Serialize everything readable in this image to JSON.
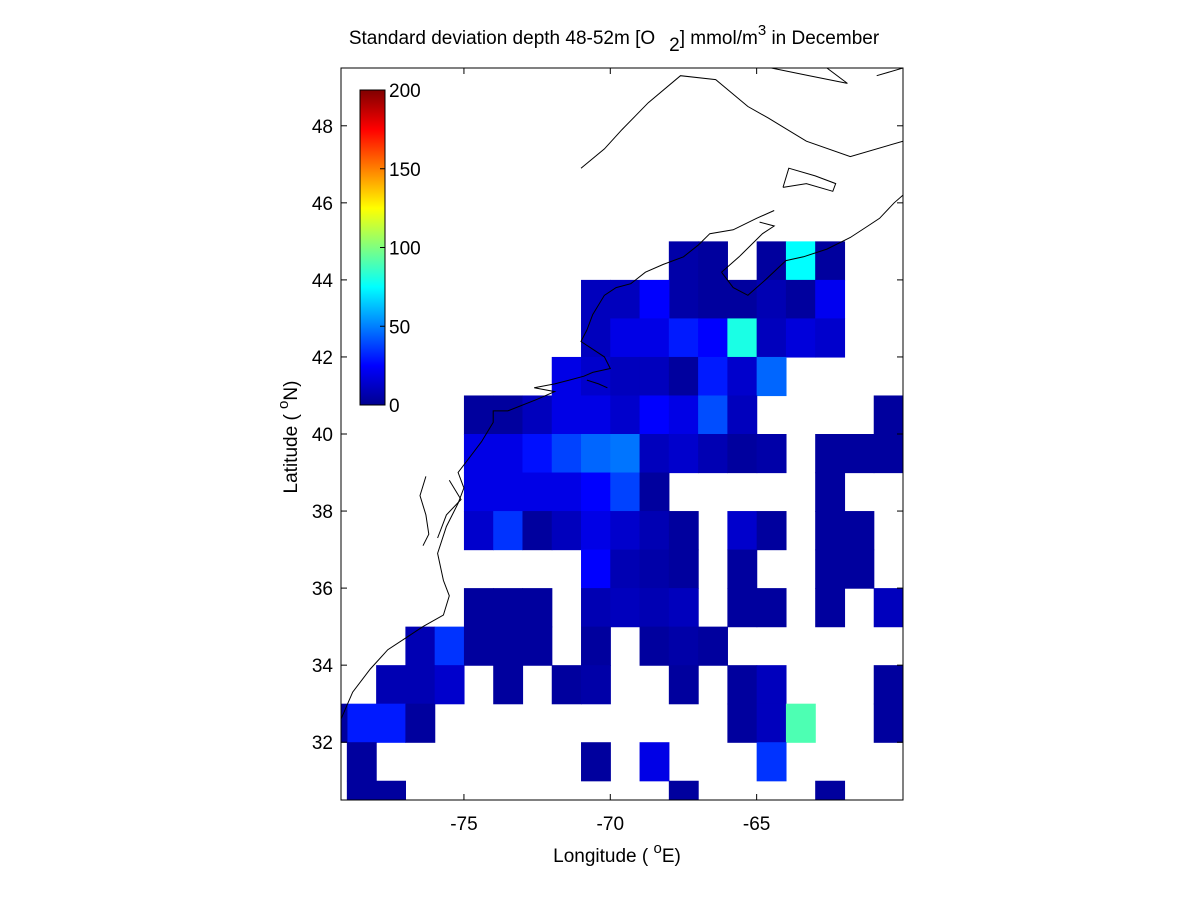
{
  "chart_data": {
    "type": "heatmap",
    "title": {
      "prefix": "Standard deviation depth 48-52m [O",
      "sub": "2",
      "mid": "] mmol/m",
      "sup": "3",
      "suffix": " in December"
    },
    "xlabel": {
      "prefix": "Longitude ( ",
      "sup": "o",
      "suffix": "E)"
    },
    "ylabel": {
      "prefix": "Latitude ( ",
      "sup": "o",
      "suffix": "N)"
    },
    "xlim": [
      -79.2,
      -60.0
    ],
    "ylim": [
      30.5,
      49.5
    ],
    "xticks": [
      -75,
      -70,
      -65
    ],
    "yticks": [
      32,
      34,
      36,
      38,
      40,
      42,
      44,
      46,
      48
    ],
    "grid": false,
    "colormap": "jet",
    "colorbar": {
      "range": [
        0,
        200
      ],
      "ticks": [
        0,
        50,
        100,
        150,
        200
      ],
      "placement": "top-left"
    },
    "cell_size_deg": 1,
    "cells": [
      {
        "lon": -67.5,
        "lat": 44.5,
        "v": 8
      },
      {
        "lon": -66.5,
        "lat": 44.5,
        "v": 6
      },
      {
        "lon": -64.5,
        "lat": 44.5,
        "v": 6
      },
      {
        "lon": -63.5,
        "lat": 44.5,
        "v": 75
      },
      {
        "lon": -62.5,
        "lat": 44.5,
        "v": 6
      },
      {
        "lon": -67.5,
        "lat": 43.5,
        "v": 8
      },
      {
        "lon": -66.5,
        "lat": 43.5,
        "v": 6
      },
      {
        "lon": -65.5,
        "lat": 43.5,
        "v": 6
      },
      {
        "lon": -64.5,
        "lat": 43.5,
        "v": 10
      },
      {
        "lon": -63.5,
        "lat": 43.5,
        "v": 6
      },
      {
        "lon": -70.5,
        "lat": 43.5,
        "v": 12
      },
      {
        "lon": -69.5,
        "lat": 43.5,
        "v": 12
      },
      {
        "lon": -68.5,
        "lat": 43.5,
        "v": 25
      },
      {
        "lon": -62.5,
        "lat": 43.5,
        "v": 22
      },
      {
        "lon": -70.5,
        "lat": 42.5,
        "v": 12
      },
      {
        "lon": -69.5,
        "lat": 42.5,
        "v": 20
      },
      {
        "lon": -68.5,
        "lat": 42.5,
        "v": 20
      },
      {
        "lon": -67.5,
        "lat": 42.5,
        "v": 30
      },
      {
        "lon": -66.5,
        "lat": 42.5,
        "v": 25
      },
      {
        "lon": -65.5,
        "lat": 42.5,
        "v": 80
      },
      {
        "lon": -64.5,
        "lat": 42.5,
        "v": 12
      },
      {
        "lon": -63.5,
        "lat": 42.5,
        "v": 18
      },
      {
        "lon": -62.5,
        "lat": 42.5,
        "v": 15
      },
      {
        "lon": -71.5,
        "lat": 41.5,
        "v": 20
      },
      {
        "lon": -70.5,
        "lat": 41.5,
        "v": 15
      },
      {
        "lon": -69.5,
        "lat": 41.5,
        "v": 12
      },
      {
        "lon": -68.5,
        "lat": 41.5,
        "v": 12
      },
      {
        "lon": -67.5,
        "lat": 41.5,
        "v": 6
      },
      {
        "lon": -66.5,
        "lat": 41.5,
        "v": 30
      },
      {
        "lon": -65.5,
        "lat": 41.5,
        "v": 15
      },
      {
        "lon": -64.5,
        "lat": 41.5,
        "v": 45
      },
      {
        "lon": -74.5,
        "lat": 40.5,
        "v": 6
      },
      {
        "lon": -73.5,
        "lat": 40.5,
        "v": 6
      },
      {
        "lon": -72.5,
        "lat": 40.5,
        "v": 12
      },
      {
        "lon": -71.5,
        "lat": 40.5,
        "v": 20
      },
      {
        "lon": -70.5,
        "lat": 40.5,
        "v": 20
      },
      {
        "lon": -69.5,
        "lat": 40.5,
        "v": 15
      },
      {
        "lon": -68.5,
        "lat": 40.5,
        "v": 25
      },
      {
        "lon": -67.5,
        "lat": 40.5,
        "v": 20
      },
      {
        "lon": -66.5,
        "lat": 40.5,
        "v": 40
      },
      {
        "lon": -65.5,
        "lat": 40.5,
        "v": 12
      },
      {
        "lon": -60.5,
        "lat": 40.5,
        "v": 6
      },
      {
        "lon": -74.5,
        "lat": 39.5,
        "v": 20
      },
      {
        "lon": -73.5,
        "lat": 39.5,
        "v": 20
      },
      {
        "lon": -72.5,
        "lat": 39.5,
        "v": 28
      },
      {
        "lon": -71.5,
        "lat": 39.5,
        "v": 38
      },
      {
        "lon": -70.5,
        "lat": 39.5,
        "v": 45
      },
      {
        "lon": -69.5,
        "lat": 39.5,
        "v": 48
      },
      {
        "lon": -68.5,
        "lat": 39.5,
        "v": 12
      },
      {
        "lon": -67.5,
        "lat": 39.5,
        "v": 15
      },
      {
        "lon": -66.5,
        "lat": 39.5,
        "v": 10
      },
      {
        "lon": -65.5,
        "lat": 39.5,
        "v": 6
      },
      {
        "lon": -64.5,
        "lat": 39.5,
        "v": 8
      },
      {
        "lon": -62.5,
        "lat": 39.5,
        "v": 6
      },
      {
        "lon": -61.5,
        "lat": 39.5,
        "v": 6
      },
      {
        "lon": -60.5,
        "lat": 39.5,
        "v": 6
      },
      {
        "lon": -74.5,
        "lat": 38.5,
        "v": 20
      },
      {
        "lon": -73.5,
        "lat": 38.5,
        "v": 20
      },
      {
        "lon": -72.5,
        "lat": 38.5,
        "v": 20
      },
      {
        "lon": -71.5,
        "lat": 38.5,
        "v": 20
      },
      {
        "lon": -70.5,
        "lat": 38.5,
        "v": 25
      },
      {
        "lon": -69.5,
        "lat": 38.5,
        "v": 38
      },
      {
        "lon": -68.5,
        "lat": 38.5,
        "v": 6
      },
      {
        "lon": -62.5,
        "lat": 38.5,
        "v": 6
      },
      {
        "lon": -74.5,
        "lat": 37.5,
        "v": 15
      },
      {
        "lon": -73.5,
        "lat": 37.5,
        "v": 35
      },
      {
        "lon": -72.5,
        "lat": 37.5,
        "v": 6
      },
      {
        "lon": -71.5,
        "lat": 37.5,
        "v": 12
      },
      {
        "lon": -70.5,
        "lat": 37.5,
        "v": 20
      },
      {
        "lon": -69.5,
        "lat": 37.5,
        "v": 15
      },
      {
        "lon": -68.5,
        "lat": 37.5,
        "v": 10
      },
      {
        "lon": -67.5,
        "lat": 37.5,
        "v": 6
      },
      {
        "lon": -65.5,
        "lat": 37.5,
        "v": 15
      },
      {
        "lon": -64.5,
        "lat": 37.5,
        "v": 6
      },
      {
        "lon": -62.5,
        "lat": 37.5,
        "v": 6
      },
      {
        "lon": -61.5,
        "lat": 37.5,
        "v": 6
      },
      {
        "lon": -70.5,
        "lat": 36.5,
        "v": 25
      },
      {
        "lon": -69.5,
        "lat": 36.5,
        "v": 10
      },
      {
        "lon": -68.5,
        "lat": 36.5,
        "v": 8
      },
      {
        "lon": -67.5,
        "lat": 36.5,
        "v": 6
      },
      {
        "lon": -65.5,
        "lat": 36.5,
        "v": 6
      },
      {
        "lon": -62.5,
        "lat": 36.5,
        "v": 6
      },
      {
        "lon": -61.5,
        "lat": 36.5,
        "v": 6
      },
      {
        "lon": -74.5,
        "lat": 35.5,
        "v": 6
      },
      {
        "lon": -73.5,
        "lat": 35.5,
        "v": 6
      },
      {
        "lon": -72.5,
        "lat": 35.5,
        "v": 6
      },
      {
        "lon": -70.5,
        "lat": 35.5,
        "v": 10
      },
      {
        "lon": -69.5,
        "lat": 35.5,
        "v": 12
      },
      {
        "lon": -68.5,
        "lat": 35.5,
        "v": 10
      },
      {
        "lon": -67.5,
        "lat": 35.5,
        "v": 12
      },
      {
        "lon": -65.5,
        "lat": 35.5,
        "v": 6
      },
      {
        "lon": -64.5,
        "lat": 35.5,
        "v": 6
      },
      {
        "lon": -62.5,
        "lat": 35.5,
        "v": 6
      },
      {
        "lon": -60.5,
        "lat": 35.5,
        "v": 12
      },
      {
        "lon": -76.5,
        "lat": 34.5,
        "v": 10
      },
      {
        "lon": -75.5,
        "lat": 34.5,
        "v": 35
      },
      {
        "lon": -74.5,
        "lat": 34.5,
        "v": 6
      },
      {
        "lon": -73.5,
        "lat": 34.5,
        "v": 6
      },
      {
        "lon": -72.5,
        "lat": 34.5,
        "v": 6
      },
      {
        "lon": -70.5,
        "lat": 34.5,
        "v": 6
      },
      {
        "lon": -68.5,
        "lat": 34.5,
        "v": 6
      },
      {
        "lon": -67.5,
        "lat": 34.5,
        "v": 8
      },
      {
        "lon": -66.5,
        "lat": 34.5,
        "v": 6
      },
      {
        "lon": -77.5,
        "lat": 33.5,
        "v": 10
      },
      {
        "lon": -76.5,
        "lat": 33.5,
        "v": 10
      },
      {
        "lon": -75.5,
        "lat": 33.5,
        "v": 15
      },
      {
        "lon": -73.5,
        "lat": 33.5,
        "v": 6
      },
      {
        "lon": -71.5,
        "lat": 33.5,
        "v": 6
      },
      {
        "lon": -70.5,
        "lat": 33.5,
        "v": 8
      },
      {
        "lon": -67.5,
        "lat": 33.5,
        "v": 6
      },
      {
        "lon": -65.5,
        "lat": 33.5,
        "v": 6
      },
      {
        "lon": -64.5,
        "lat": 33.5,
        "v": 12
      },
      {
        "lon": -60.5,
        "lat": 33.5,
        "v": 6
      },
      {
        "lon": -78.5,
        "lat": 32.5,
        "v": 30
      },
      {
        "lon": -77.5,
        "lat": 32.5,
        "v": 30
      },
      {
        "lon": -76.5,
        "lat": 32.5,
        "v": 6
      },
      {
        "lon": -65.5,
        "lat": 32.5,
        "v": 6
      },
      {
        "lon": -64.5,
        "lat": 32.5,
        "v": 12
      },
      {
        "lon": -63.5,
        "lat": 32.5,
        "v": 90
      },
      {
        "lon": -60.5,
        "lat": 32.5,
        "v": 6
      },
      {
        "lon": -79.5,
        "lat": 32.5,
        "v": 6
      },
      {
        "lon": -78.5,
        "lat": 31.5,
        "v": 6
      },
      {
        "lon": -70.5,
        "lat": 31.5,
        "v": 6
      },
      {
        "lon": -68.5,
        "lat": 31.5,
        "v": 20
      },
      {
        "lon": -64.5,
        "lat": 31.5,
        "v": 35
      },
      {
        "lon": -78.5,
        "lat": 30.5,
        "v": 6
      },
      {
        "lon": -77.5,
        "lat": 30.5,
        "v": 6
      },
      {
        "lon": -67.5,
        "lat": 30.5,
        "v": 6
      },
      {
        "lon": -62.5,
        "lat": 30.5,
        "v": 6
      }
    ],
    "coastline": [
      [
        [
          -79.2,
          32.6
        ],
        [
          -78.8,
          33.3
        ],
        [
          -78.2,
          33.9
        ],
        [
          -77.6,
          34.4
        ],
        [
          -77.0,
          34.7
        ],
        [
          -76.4,
          35.0
        ],
        [
          -75.7,
          35.3
        ],
        [
          -75.5,
          35.8
        ],
        [
          -75.7,
          36.2
        ],
        [
          -75.9,
          36.9
        ],
        [
          -75.6,
          37.6
        ],
        [
          -75.2,
          38.2
        ],
        [
          -75.0,
          38.6
        ],
        [
          -75.2,
          39.0
        ],
        [
          -74.9,
          39.3
        ],
        [
          -74.4,
          39.8
        ],
        [
          -74.0,
          40.3
        ],
        [
          -74.0,
          40.6
        ],
        [
          -73.5,
          40.6
        ],
        [
          -72.5,
          40.9
        ],
        [
          -71.9,
          41.1
        ],
        [
          -72.6,
          41.2
        ],
        [
          -71.9,
          41.3
        ],
        [
          -71.4,
          41.4
        ],
        [
          -70.9,
          41.5
        ],
        [
          -70.6,
          41.6
        ],
        [
          -70.0,
          41.7
        ],
        [
          -70.2,
          42.0
        ],
        [
          -70.6,
          42.2
        ],
        [
          -71.0,
          42.4
        ],
        [
          -70.8,
          42.7
        ],
        [
          -70.6,
          43.1
        ],
        [
          -70.2,
          43.6
        ],
        [
          -69.8,
          43.8
        ],
        [
          -69.3,
          43.9
        ],
        [
          -68.8,
          44.2
        ],
        [
          -68.2,
          44.4
        ],
        [
          -67.5,
          44.6
        ],
        [
          -67.0,
          44.9
        ],
        [
          -66.6,
          45.2
        ],
        [
          -65.8,
          45.3
        ],
        [
          -65.0,
          45.6
        ],
        [
          -64.4,
          45.8
        ]
      ],
      [
        [
          -66.2,
          44.2
        ],
        [
          -65.8,
          43.8
        ],
        [
          -65.3,
          43.6
        ],
        [
          -64.7,
          44.0
        ],
        [
          -64.0,
          44.5
        ],
        [
          -63.4,
          44.6
        ],
        [
          -62.6,
          44.8
        ],
        [
          -61.8,
          45.1
        ],
        [
          -61.2,
          45.4
        ],
        [
          -60.8,
          45.6
        ],
        [
          -60.3,
          46.0
        ],
        [
          -60.0,
          46.2
        ]
      ],
      [
        [
          -66.2,
          44.2
        ],
        [
          -65.6,
          44.6
        ],
        [
          -64.8,
          45.2
        ],
        [
          -64.4,
          45.4
        ],
        [
          -64.9,
          45.5
        ]
      ],
      [
        [
          -64.1,
          46.4
        ],
        [
          -63.3,
          46.5
        ],
        [
          -62.4,
          46.3
        ],
        [
          -62.3,
          46.5
        ],
        [
          -63.0,
          46.7
        ],
        [
          -63.9,
          46.9
        ],
        [
          -64.1,
          46.4
        ]
      ],
      [
        [
          -60.0,
          47.6
        ],
        [
          -61.8,
          47.2
        ],
        [
          -63.3,
          47.6
        ],
        [
          -64.6,
          48.2
        ],
        [
          -65.3,
          48.5
        ],
        [
          -66.4,
          49.2
        ],
        [
          -67.6,
          49.3
        ],
        [
          -68.7,
          48.6
        ],
        [
          -69.6,
          47.9
        ],
        [
          -70.2,
          47.4
        ],
        [
          -71.0,
          46.9
        ]
      ],
      [
        [
          -64.5,
          49.5
        ],
        [
          -63.2,
          49.3
        ],
        [
          -61.9,
          49.1
        ],
        [
          -62.6,
          49.5
        ]
      ],
      [
        [
          -60.0,
          49.5
        ],
        [
          -60.9,
          49.3
        ]
      ],
      [
        [
          -76.3,
          38.9
        ],
        [
          -76.5,
          38.4
        ],
        [
          -76.3,
          37.9
        ],
        [
          -76.2,
          37.4
        ],
        [
          -76.4,
          37.1
        ]
      ],
      [
        [
          -75.5,
          38.8
        ],
        [
          -75.1,
          38.3
        ],
        [
          -75.6,
          37.9
        ],
        [
          -75.9,
          37.3
        ]
      ],
      [
        [
          -70.8,
          41.4
        ],
        [
          -70.4,
          41.3
        ],
        [
          -70.1,
          41.2
        ]
      ]
    ]
  }
}
